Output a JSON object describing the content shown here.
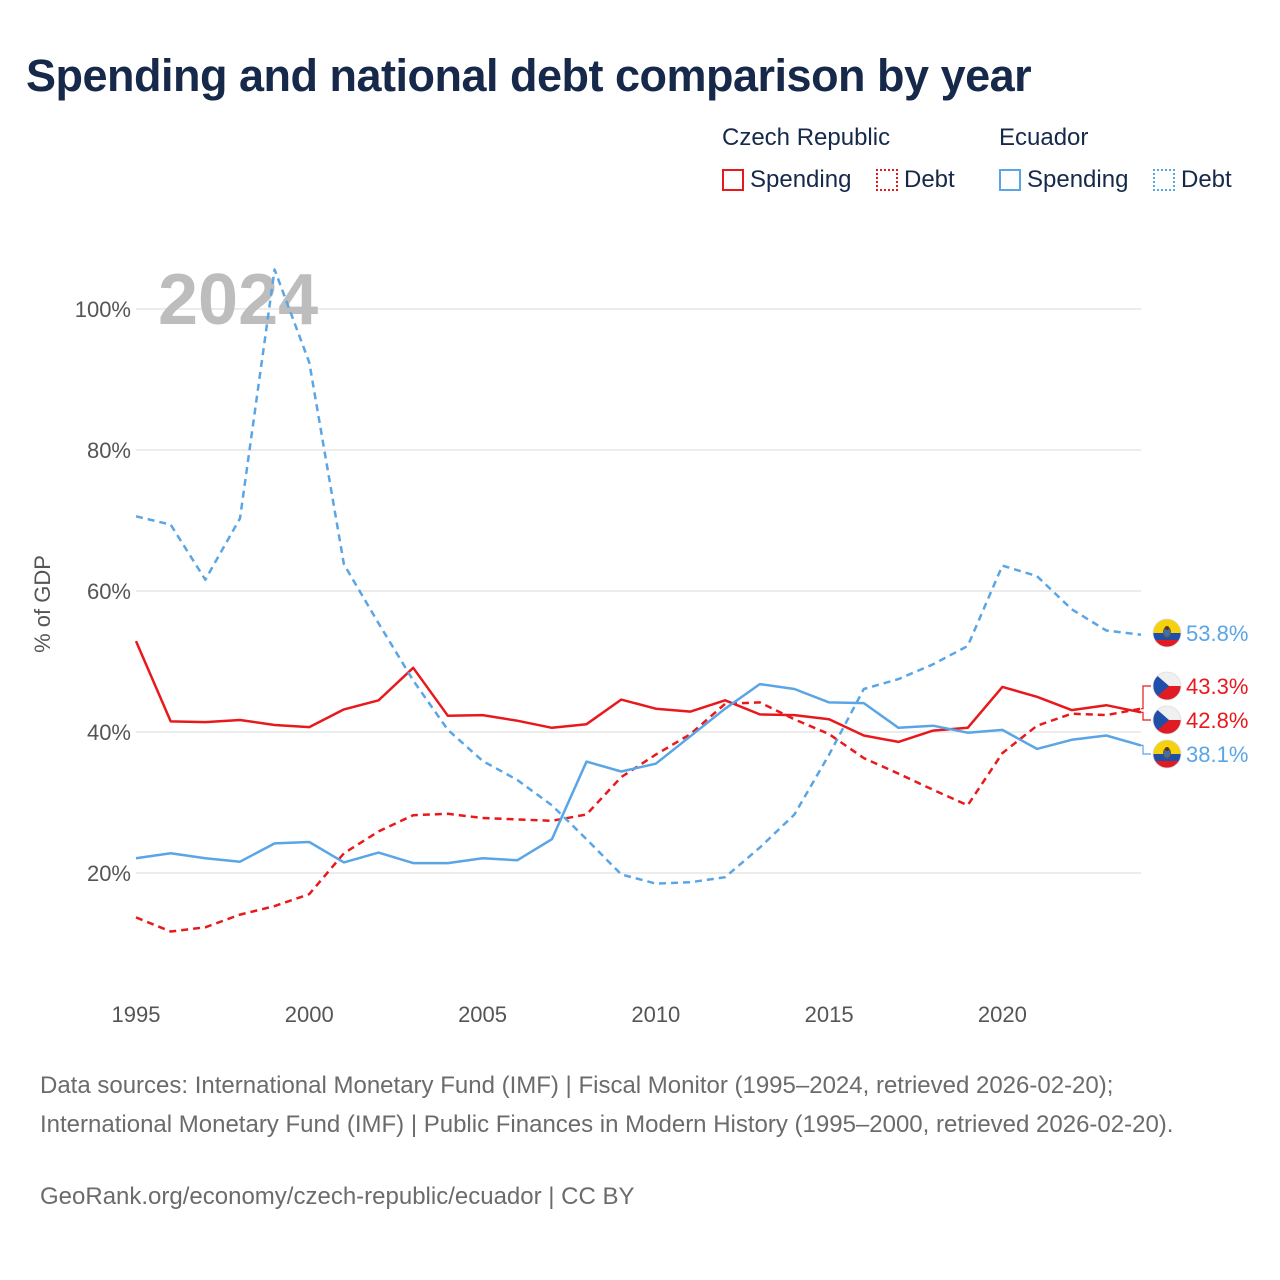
{
  "title": "Spending and national debt comparison by year",
  "legend": {
    "groups": [
      {
        "name": "Czech Republic",
        "color": "#e8191c",
        "items": [
          {
            "label": "Spending",
            "style": "solid"
          },
          {
            "label": "Debt",
            "style": "dotted"
          }
        ]
      },
      {
        "name": "Ecuador",
        "color": "#5aa5e6",
        "items": [
          {
            "label": "Spending",
            "style": "solid"
          },
          {
            "label": "Debt",
            "style": "dotted"
          }
        ]
      }
    ]
  },
  "year_watermark": "2024",
  "chart_data": {
    "type": "line",
    "ylabel": "% of GDP",
    "ylim": [
      5,
      107
    ],
    "xlim": [
      1995,
      2024
    ],
    "xticks": [
      1995,
      2000,
      2005,
      2010,
      2015,
      2020
    ],
    "yticks": [
      20,
      40,
      60,
      80,
      100
    ],
    "yticklabels": [
      "20%",
      "40%",
      "60%",
      "80%",
      "100%"
    ],
    "grid": true,
    "x": [
      1995,
      1996,
      1997,
      1998,
      1999,
      2000,
      2001,
      2002,
      2003,
      2004,
      2005,
      2006,
      2007,
      2008,
      2009,
      2010,
      2011,
      2012,
      2013,
      2014,
      2015,
      2016,
      2017,
      2018,
      2019,
      2020,
      2021,
      2022,
      2023,
      2024
    ],
    "series": [
      {
        "name": "Czech Republic Spending",
        "country": "Czech Republic",
        "metric": "Spending",
        "color": "#e8191c",
        "dashed": false,
        "values": [
          52.9,
          41.5,
          41.4,
          41.7,
          41.0,
          40.7,
          43.2,
          44.5,
          49.1,
          42.3,
          42.4,
          41.6,
          40.6,
          41.1,
          44.6,
          43.3,
          42.9,
          44.5,
          42.5,
          42.4,
          41.8,
          39.5,
          38.6,
          40.2,
          40.6,
          46.4,
          45.0,
          43.1,
          43.8,
          42.8
        ],
        "end_label": "42.8%"
      },
      {
        "name": "Czech Republic Debt",
        "country": "Czech Republic",
        "metric": "Debt",
        "color": "#e8191c",
        "dashed": true,
        "values": [
          13.7,
          11.7,
          12.3,
          14.1,
          15.3,
          17.0,
          22.8,
          25.9,
          28.2,
          28.4,
          27.8,
          27.6,
          27.4,
          28.3,
          33.6,
          36.8,
          39.7,
          44.0,
          44.2,
          41.8,
          39.7,
          36.3,
          34.1,
          31.8,
          29.6,
          37.0,
          40.9,
          42.6,
          42.4,
          43.3
        ],
        "end_label": "43.3%"
      },
      {
        "name": "Ecuador Spending",
        "country": "Ecuador",
        "metric": "Spending",
        "color": "#5aa5e6",
        "dashed": false,
        "values": [
          22.1,
          22.8,
          22.1,
          21.6,
          24.2,
          24.4,
          21.5,
          22.9,
          21.4,
          21.4,
          22.1,
          21.8,
          24.8,
          35.8,
          34.4,
          35.5,
          39.4,
          43.3,
          46.8,
          46.1,
          44.2,
          44.1,
          40.6,
          40.9,
          39.9,
          40.3,
          37.6,
          38.9,
          39.5,
          38.1
        ],
        "end_label": "38.1%"
      },
      {
        "name": "Ecuador Debt",
        "country": "Ecuador",
        "metric": "Debt",
        "color": "#5aa5e6",
        "dashed": true,
        "values": [
          70.6,
          69.4,
          61.6,
          70.3,
          105.6,
          92.4,
          63.8,
          55.4,
          47.3,
          40.3,
          35.9,
          33.2,
          29.6,
          24.8,
          19.8,
          18.5,
          18.7,
          19.4,
          23.6,
          28.3,
          36.8,
          46.1,
          47.5,
          49.6,
          52.2,
          63.6,
          62.1,
          57.4,
          54.4,
          53.8
        ],
        "end_label": "53.8%"
      }
    ]
  },
  "footer": {
    "sources": "Data sources: International Monetary Fund (IMF) | Fiscal Monitor (1995–2024, retrieved 2026-02-20); International Monetary Fund (IMF) | Public Finances in Modern History (1995–2000, retrieved 2026-02-20).",
    "credit": "GeoRank.org/economy/czech-republic/ecuador | CC BY"
  }
}
